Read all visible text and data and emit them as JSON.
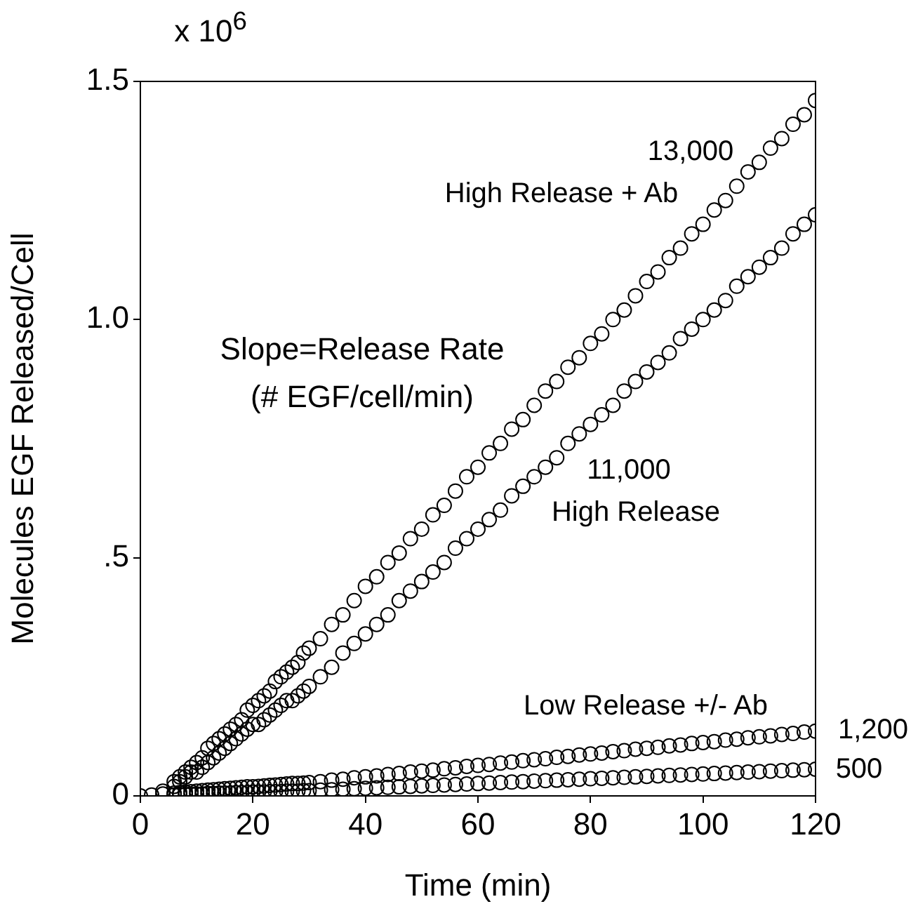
{
  "chart_data": {
    "type": "scatter",
    "xlabel": "Time (min)",
    "ylabel": "Molecules EGF Released/Cell",
    "x": [
      0,
      2,
      4,
      6,
      7,
      8,
      9,
      10,
      11,
      12,
      13,
      14,
      15,
      16,
      17,
      18,
      19,
      20,
      21,
      22,
      23,
      24,
      25,
      26,
      27,
      28,
      29,
      30,
      32,
      34,
      36,
      38,
      40,
      42,
      44,
      46,
      48,
      50,
      52,
      54,
      56,
      58,
      60,
      62,
      64,
      66,
      68,
      70,
      72,
      74,
      76,
      78,
      80,
      82,
      84,
      86,
      88,
      90,
      92,
      94,
      96,
      98,
      100,
      102,
      104,
      106,
      108,
      110,
      112,
      114,
      116,
      118,
      120
    ],
    "series": [
      {
        "color": "#000000",
        "values": [
          0,
          null,
          0.01,
          0.03,
          0.04,
          0.05,
          0.06,
          0.07,
          0.08,
          0.1,
          0.11,
          0.12,
          0.13,
          0.14,
          0.15,
          0.16,
          0.18,
          0.19,
          0.2,
          0.21,
          0.22,
          0.24,
          0.25,
          0.26,
          0.27,
          0.28,
          0.3,
          0.31,
          0.33,
          0.36,
          0.38,
          0.41,
          0.44,
          0.46,
          0.49,
          0.51,
          0.54,
          0.56,
          0.59,
          0.61,
          0.64,
          0.67,
          0.69,
          0.72,
          0.74,
          0.77,
          0.79,
          0.82,
          0.85,
          0.87,
          0.9,
          0.92,
          0.95,
          0.97,
          1.0,
          1.02,
          1.05,
          1.08,
          1.1,
          1.13,
          1.15,
          1.18,
          1.2,
          1.23,
          1.25,
          1.28,
          1.31,
          1.33,
          1.36,
          1.38,
          1.41,
          1.43,
          1.46
        ]
      },
      {
        "color": "#000000",
        "values": [
          null,
          null,
          null,
          0.02,
          0.03,
          0.04,
          0.05,
          0.05,
          0.06,
          0.07,
          0.08,
          0.09,
          0.1,
          0.11,
          0.12,
          0.13,
          0.14,
          0.15,
          0.15,
          0.16,
          0.17,
          0.18,
          0.19,
          0.2,
          0.2,
          0.21,
          0.22,
          0.23,
          0.25,
          0.27,
          0.3,
          0.32,
          0.34,
          0.36,
          0.38,
          0.41,
          0.43,
          0.45,
          0.47,
          0.49,
          0.52,
          0.54,
          0.56,
          0.58,
          0.6,
          0.63,
          0.65,
          0.67,
          0.69,
          0.71,
          0.74,
          0.76,
          0.78,
          0.8,
          0.82,
          0.85,
          0.87,
          0.89,
          0.91,
          0.93,
          0.96,
          0.98,
          1.0,
          1.02,
          1.04,
          1.07,
          1.09,
          1.11,
          1.13,
          1.15,
          1.18,
          1.2,
          1.22
        ]
      },
      {
        "color": "#000000",
        "values": [
          null,
          0.002,
          0.004,
          0.006,
          0.007,
          0.008,
          0.009,
          0.01,
          0.011,
          0.012,
          0.013,
          0.014,
          0.015,
          0.016,
          0.017,
          0.018,
          0.019,
          0.019,
          0.02,
          0.021,
          0.022,
          0.023,
          0.024,
          0.025,
          0.026,
          0.026,
          0.027,
          0.028,
          0.03,
          0.033,
          0.035,
          0.038,
          0.04,
          0.042,
          0.045,
          0.047,
          0.05,
          0.052,
          0.054,
          0.057,
          0.059,
          0.062,
          0.064,
          0.066,
          0.069,
          0.071,
          0.074,
          0.076,
          0.078,
          0.081,
          0.083,
          0.086,
          0.088,
          0.09,
          0.093,
          0.095,
          0.098,
          0.1,
          0.102,
          0.105,
          0.107,
          0.11,
          0.112,
          0.114,
          0.117,
          0.119,
          0.122,
          0.124,
          0.126,
          0.129,
          0.131,
          0.134,
          0.136
        ]
      },
      {
        "color": "#000000",
        "values": [
          null,
          null,
          null,
          0.002,
          0.003,
          0.003,
          0.004,
          0.004,
          0.004,
          0.005,
          0.005,
          0.006,
          0.006,
          0.006,
          0.007,
          0.007,
          0.007,
          0.008,
          0.008,
          0.008,
          0.009,
          0.009,
          0.009,
          0.01,
          0.01,
          0.01,
          0.011,
          0.011,
          0.012,
          0.013,
          0.014,
          0.015,
          0.016,
          0.017,
          0.018,
          0.019,
          0.02,
          0.021,
          0.022,
          0.023,
          0.024,
          0.025,
          0.026,
          0.027,
          0.028,
          0.029,
          0.03,
          0.031,
          0.032,
          0.033,
          0.034,
          0.035,
          0.036,
          0.037,
          0.038,
          0.039,
          0.04,
          0.041,
          0.042,
          0.043,
          0.044,
          0.045,
          0.046,
          0.047,
          0.048,
          0.049,
          0.05,
          0.051,
          0.052,
          0.053,
          0.054,
          0.055,
          0.056
        ]
      }
    ],
    "xlim": [
      0,
      120
    ],
    "xticks": [
      0,
      20,
      40,
      60,
      80,
      100,
      120
    ],
    "ylim": [
      0,
      1.5
    ],
    "yticks": [
      0,
      {
        "value": 0.5,
        "label": ".5"
      },
      {
        "value": 1,
        "label": "1.0"
      },
      {
        "value": 1.5,
        "label": "1.5"
      }
    ],
    "marker": "circle",
    "grid": false,
    "legend": false,
    "annotations": [
      "x 10$^{6}$",
      "Slope=Release Rate",
      "(# EGF/cell/min)",
      "13,000",
      "High Release + Ab",
      "11,000",
      "High Release",
      "Low Release +/- Ab",
      "1,200",
      "500"
    ]
  }
}
